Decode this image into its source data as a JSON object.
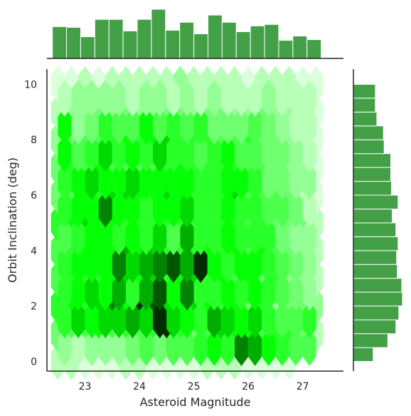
{
  "chart_data": {
    "type": "hexbin-jointplot",
    "xlabel": "Asteroid Magnitude",
    "ylabel": "Orbit Inclination (deg)",
    "xlim": [
      22.3,
      27.75
    ],
    "ylim": [
      -0.35,
      10.55
    ],
    "x_ticks": [
      23,
      24,
      25,
      26,
      27
    ],
    "y_ticks": [
      0,
      2,
      4,
      6,
      8,
      10
    ],
    "hex_grid": {
      "x_min": 22.5,
      "x_max": 27.5,
      "nx": 20,
      "y_min": 0.0,
      "y_max": 10.0,
      "ny": 10,
      "color_max": "#000000",
      "color_mid": "#00ff00",
      "color_min": "#ffffff",
      "max_count": 13,
      "counts_even_rows": [
        [
          2,
          2,
          1,
          1,
          1,
          2,
          2,
          1,
          1,
          1,
          1,
          2,
          2,
          2,
          1,
          1,
          1,
          1,
          0,
          0
        ],
        [
          4,
          5,
          5,
          7,
          5,
          6,
          5,
          6,
          12,
          6,
          4,
          5,
          8,
          7,
          7,
          5,
          6,
          6,
          4,
          2
        ],
        [
          6,
          7,
          6,
          8,
          10,
          7,
          12,
          11,
          8,
          7,
          8,
          7,
          6,
          7,
          4,
          6,
          3,
          4,
          4,
          3
        ],
        [
          5,
          6,
          6,
          6,
          7,
          8,
          7,
          8,
          6,
          7,
          8,
          6,
          7,
          5,
          7,
          4,
          6,
          3,
          3,
          2
        ],
        [
          5,
          6,
          7,
          7,
          7,
          9,
          7,
          8,
          6,
          6,
          6,
          7,
          6,
          7,
          5,
          7,
          5,
          4,
          3,
          2
        ],
        [
          6,
          7,
          8,
          7,
          7,
          6,
          6,
          6,
          6,
          6,
          6,
          6,
          6,
          6,
          5,
          6,
          4,
          4,
          4,
          2
        ],
        [
          4,
          5,
          7,
          6,
          8,
          8,
          7,
          7,
          8,
          7,
          6,
          6,
          6,
          8,
          5,
          5,
          5,
          4,
          2,
          1
        ],
        [
          4,
          6,
          5,
          7,
          5,
          5,
          5,
          5,
          6,
          7,
          6,
          6,
          6,
          6,
          5,
          5,
          4,
          3,
          3,
          1
        ],
        [
          3,
          4,
          5,
          5,
          6,
          7,
          6,
          7,
          8,
          6,
          6,
          6,
          5,
          5,
          6,
          4,
          4,
          3,
          2,
          1
        ],
        [
          2,
          3,
          3,
          4,
          3,
          4,
          3,
          3,
          4,
          4,
          3,
          4,
          4,
          3,
          3,
          4,
          3,
          3,
          2,
          1
        ],
        [
          1,
          1,
          2,
          1,
          2,
          2,
          2,
          2,
          2,
          3,
          2,
          2,
          2,
          2,
          1,
          2,
          2,
          2,
          1,
          1
        ]
      ],
      "counts_odd_rows": [
        [
          3,
          2,
          3,
          3,
          3,
          4,
          5,
          4,
          5,
          5,
          6,
          7,
          6,
          10,
          9,
          7,
          6,
          5,
          5
        ],
        [
          6,
          8,
          7,
          8,
          8,
          9,
          8,
          12,
          8,
          7,
          6,
          9,
          8,
          7,
          8,
          6,
          5,
          5,
          6
        ],
        [
          6,
          7,
          8,
          7,
          9,
          6,
          9,
          11,
          7,
          10,
          6,
          6,
          7,
          6,
          7,
          6,
          5,
          4,
          3
        ],
        [
          6,
          7,
          7,
          7,
          10,
          8,
          9,
          10,
          11,
          9,
          12,
          7,
          6,
          7,
          7,
          6,
          5,
          4,
          3
        ],
        [
          5,
          6,
          7,
          7,
          6,
          7,
          6,
          8,
          5,
          9,
          6,
          6,
          7,
          6,
          6,
          6,
          4,
          3,
          3
        ],
        [
          6,
          7,
          7,
          10,
          7,
          7,
          6,
          7,
          7,
          8,
          6,
          6,
          7,
          6,
          6,
          5,
          5,
          4,
          2
        ],
        [
          6,
          7,
          8,
          7,
          7,
          8,
          7,
          7,
          7,
          7,
          6,
          6,
          7,
          7,
          6,
          4,
          4,
          3,
          3
        ],
        [
          7,
          5,
          6,
          8,
          6,
          7,
          6,
          8,
          6,
          6,
          5,
          6,
          7,
          5,
          5,
          4,
          4,
          3,
          2
        ],
        [
          7,
          3,
          4,
          6,
          5,
          5,
          7,
          5,
          6,
          5,
          6,
          4,
          4,
          4,
          5,
          4,
          3,
          2,
          2
        ],
        [
          2,
          3,
          3,
          3,
          3,
          2,
          3,
          3,
          2,
          3,
          2,
          3,
          2,
          2,
          2,
          3,
          2,
          2,
          2
        ]
      ]
    },
    "marginal_x": {
      "type": "histogram",
      "color": "#43a047",
      "bin_edges": [
        22.4,
        22.66,
        22.92,
        23.18,
        23.44,
        23.7,
        23.96,
        24.22,
        24.48,
        24.74,
        25.0,
        25.26,
        25.52,
        25.78,
        26.04,
        26.3,
        26.56,
        26.82,
        27.08,
        27.34,
        27.6
      ],
      "counts": [
        44,
        43,
        30,
        54,
        54,
        38,
        54,
        68,
        39,
        50,
        34,
        60,
        50,
        37,
        45,
        47,
        25,
        31,
        26,
        0
      ]
    },
    "marginal_y": {
      "type": "histogram",
      "color": "#43a047",
      "bin_edges": [
        0.0,
        0.5,
        1.0,
        1.5,
        2.0,
        2.5,
        3.0,
        3.5,
        4.0,
        4.5,
        5.0,
        5.5,
        6.0,
        6.5,
        7.0,
        7.5,
        8.0,
        8.5,
        9.0,
        9.5,
        10.0
      ],
      "counts": [
        27,
        47,
        58,
        62,
        67,
        66,
        60,
        59,
        61,
        58,
        53,
        61,
        52,
        51,
        51,
        42,
        41,
        32,
        30,
        30
      ]
    }
  }
}
